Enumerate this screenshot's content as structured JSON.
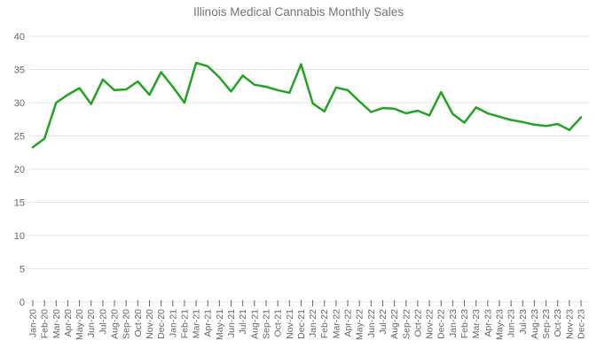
{
  "chart": {
    "background": "#ffffff",
    "title_color": "#757575",
    "line_color": "#22a322",
    "grid_color": "#e6e6e6",
    "axis_label_color": "#666666",
    "tick_color": "#666666"
  },
  "chart_data": {
    "type": "line",
    "title": "Illinois Medical Cannabis Monthly Sales",
    "series_name": "Monthly Sales",
    "legend": "none",
    "grid": true,
    "ylim": [
      0,
      40
    ],
    "yticks": [
      0,
      5,
      10,
      15,
      20,
      25,
      30,
      35,
      40
    ],
    "x_label_rotation": -90,
    "categories": [
      "Jan-20",
      "Feb-20",
      "Mar-20",
      "Apr-20",
      "May-20",
      "Jun-20",
      "Jul-20",
      "Aug-20",
      "Sep-20",
      "Oct-20",
      "Nov-20",
      "Dec-20",
      "Jan-21",
      "Feb-21",
      "Mar-21",
      "Apr-21",
      "May-21",
      "Jun-21",
      "Jul-21",
      "Aug-21",
      "Sep-21",
      "Oct-21",
      "Nov-21",
      "Dec-21",
      "Jan-22",
      "Feb-22",
      "Mar-22",
      "Apr-22",
      "May-22",
      "Jun-22",
      "Jul-22",
      "Aug-22",
      "Sep-22",
      "Oct-22",
      "Nov-22",
      "Dec-22",
      "Jan-23",
      "Feb-23",
      "Mar-23",
      "Apr-23",
      "May-23",
      "Jun-23",
      "Jul-23",
      "Aug-23",
      "Sep-23",
      "Oct-23",
      "Nov-23",
      "Dec-23"
    ],
    "values": [
      23.3,
      24.6,
      30.0,
      31.2,
      32.2,
      29.8,
      33.5,
      31.9,
      32.0,
      33.2,
      31.2,
      34.6,
      32.4,
      30.0,
      36.0,
      35.5,
      33.8,
      31.7,
      34.1,
      32.7,
      32.4,
      31.9,
      31.5,
      35.8,
      29.9,
      28.7,
      32.3,
      31.9,
      30.2,
      28.6,
      29.2,
      29.1,
      28.4,
      28.8,
      28.1,
      31.6,
      28.3,
      27.0,
      29.3,
      28.4,
      27.9,
      27.4,
      27.1,
      26.7,
      26.5,
      26.8,
      25.9,
      27.8
    ]
  }
}
